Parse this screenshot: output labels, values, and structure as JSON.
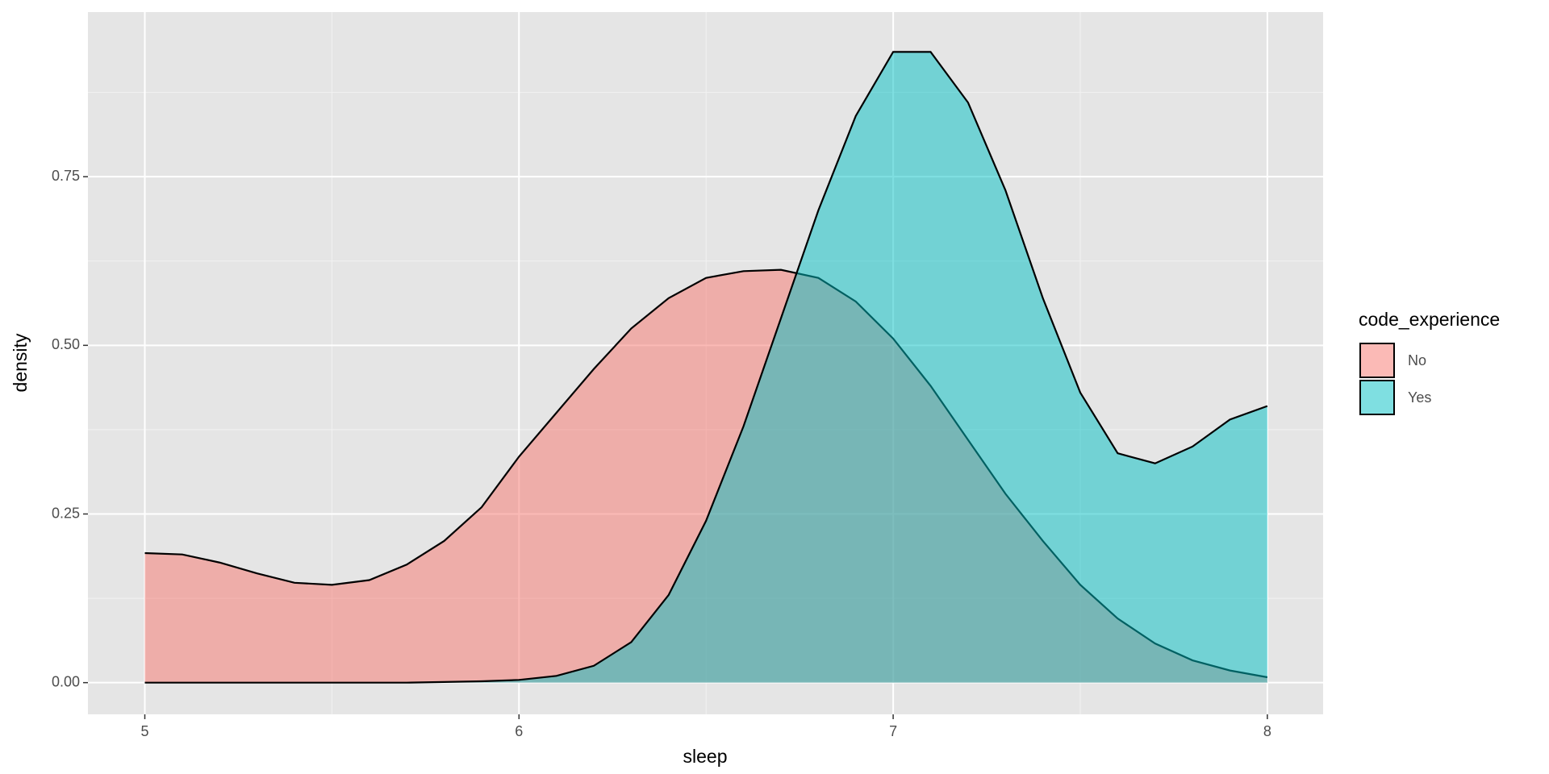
{
  "chart_data": {
    "type": "density",
    "x_label": "sleep",
    "y_label": "density",
    "x": [
      5.0,
      5.1,
      5.2,
      5.3,
      5.4,
      5.5,
      5.6,
      5.7,
      5.8,
      5.9,
      6.0,
      6.1,
      6.2,
      6.3,
      6.4,
      6.5,
      6.6,
      6.7,
      6.8,
      6.9,
      7.0,
      7.1,
      7.2,
      7.3,
      7.4,
      7.5,
      7.6,
      7.7,
      7.8,
      7.9,
      8.0
    ],
    "series": [
      {
        "name": "No",
        "color": "#F8766D",
        "values": [
          0.192,
          0.19,
          0.178,
          0.162,
          0.148,
          0.145,
          0.152,
          0.175,
          0.21,
          0.26,
          0.335,
          0.4,
          0.465,
          0.525,
          0.57,
          0.6,
          0.61,
          0.612,
          0.6,
          0.565,
          0.51,
          0.44,
          0.36,
          0.28,
          0.21,
          0.145,
          0.095,
          0.058,
          0.033,
          0.018,
          0.008
        ]
      },
      {
        "name": "Yes",
        "color": "#00BFC4",
        "values": [
          0,
          0,
          0,
          0,
          0,
          0,
          0,
          0,
          0.001,
          0.002,
          0.004,
          0.01,
          0.025,
          0.06,
          0.13,
          0.24,
          0.38,
          0.54,
          0.7,
          0.84,
          0.935,
          0.935,
          0.86,
          0.73,
          0.57,
          0.43,
          0.34,
          0.325,
          0.35,
          0.39,
          0.41
        ]
      }
    ],
    "legend_title": "code_experience",
    "fill_alpha": 0.5,
    "xlim": [
      4.848,
      8.149
    ],
    "ylim": [
      -0.047,
      0.994
    ],
    "xticks": [
      5,
      6,
      7,
      8
    ],
    "yticks": [
      {
        "value": 0,
        "label": "0.00"
      },
      {
        "value": 0.25,
        "label": "0.25"
      },
      {
        "value": 0.5,
        "label": "0.50"
      },
      {
        "value": 0.75,
        "label": "0.75"
      }
    ],
    "grid": true,
    "legend_position": "right"
  }
}
